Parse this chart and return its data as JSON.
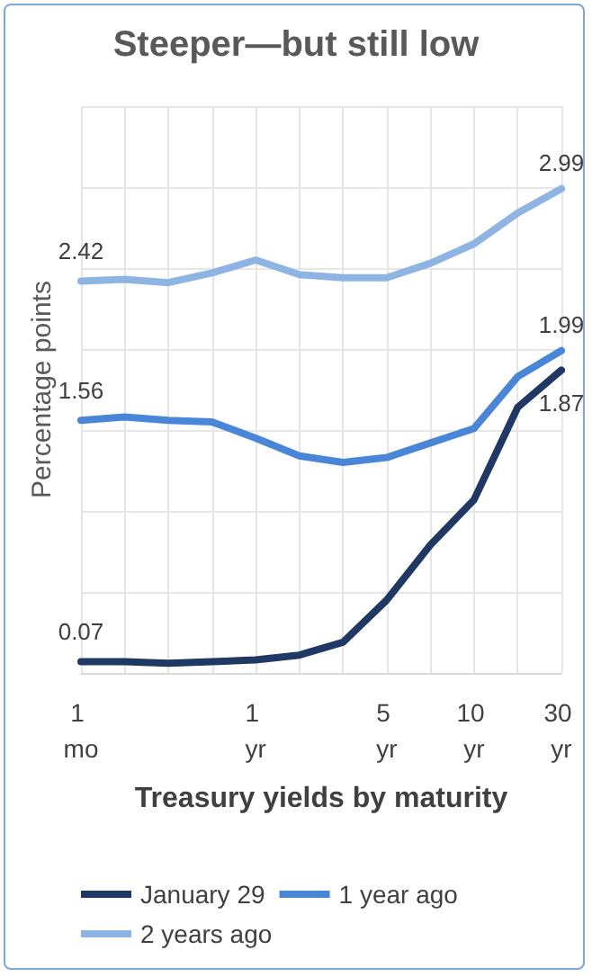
{
  "chart_data": {
    "type": "line",
    "title": "Steeper—but still low",
    "xlabel": "Treasury yields by maturity",
    "ylabel": "Percentage points",
    "categories": [
      "1 mo",
      null,
      null,
      null,
      "1 yr",
      null,
      null,
      "5 yr",
      null,
      "10 yr",
      null,
      "30 yr"
    ],
    "series": [
      {
        "name": "January 29",
        "color": "#1f3864",
        "values": [
          0.07,
          0.07,
          0.06,
          0.07,
          0.08,
          0.11,
          0.19,
          0.45,
          0.79,
          1.07,
          1.64,
          1.87
        ],
        "value_labels": [
          "0.07",
          null,
          null,
          null,
          null,
          null,
          null,
          null,
          null,
          null,
          null,
          "1.87"
        ]
      },
      {
        "name": "1 year ago",
        "color": "#4a86d8",
        "values": [
          1.56,
          1.58,
          1.56,
          1.55,
          1.45,
          1.34,
          1.3,
          1.33,
          1.42,
          1.51,
          1.83,
          1.99
        ],
        "value_labels": [
          "1.56",
          null,
          null,
          null,
          null,
          null,
          null,
          null,
          null,
          null,
          null,
          "1.99"
        ]
      },
      {
        "name": "2 years ago",
        "color": "#8db4e2",
        "values": [
          2.42,
          2.43,
          2.41,
          2.47,
          2.55,
          2.46,
          2.44,
          2.44,
          2.53,
          2.65,
          2.84,
          2.99
        ],
        "value_labels": [
          "2.42",
          null,
          null,
          null,
          null,
          null,
          null,
          null,
          null,
          null,
          null,
          "2.99"
        ]
      }
    ],
    "ylim": [
      0,
      3.5
    ],
    "yticks": [
      {
        "value": 0,
        "label": null
      },
      {
        "value": 0.5,
        "label": null
      },
      {
        "value": 1,
        "label": null
      },
      {
        "value": 1.5,
        "label": null
      },
      {
        "value": 2,
        "label": null
      },
      {
        "value": 2.5,
        "label": null
      },
      {
        "value": 3,
        "label": null
      },
      {
        "value": 3.5,
        "label": null
      }
    ],
    "tick_labels": "x",
    "grid": true,
    "legend": "bottom",
    "marker": "none",
    "line_style": "solid"
  }
}
